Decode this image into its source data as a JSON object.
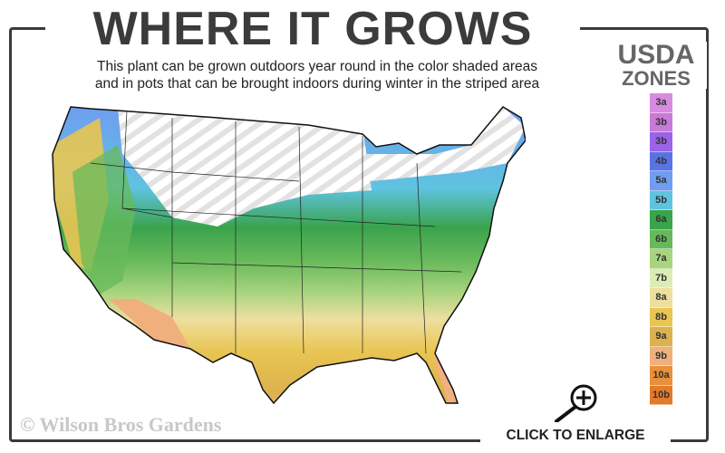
{
  "title": "WHERE IT GROWS",
  "subtitle_line1": "This plant can be grown outdoors year round in the color shaded areas",
  "subtitle_line2": "and in pots that can be brought indoors during winter in the striped area",
  "legend": {
    "title_line1": "USDA",
    "title_line2": "ZONES",
    "zones": [
      {
        "label": "3a",
        "color": "#d88be0"
      },
      {
        "label": "3b",
        "color": "#c77ad8"
      },
      {
        "label": "3b",
        "color": "#9b63e6"
      },
      {
        "label": "4b",
        "color": "#5a73e3"
      },
      {
        "label": "5a",
        "color": "#6f9df0"
      },
      {
        "label": "5b",
        "color": "#5fc3e0"
      },
      {
        "label": "6a",
        "color": "#3aa34c"
      },
      {
        "label": "6b",
        "color": "#67b95a"
      },
      {
        "label": "7a",
        "color": "#a8d47e"
      },
      {
        "label": "7b",
        "color": "#dcecb5"
      },
      {
        "label": "8a",
        "color": "#eedfa0"
      },
      {
        "label": "8b",
        "color": "#e9c552"
      },
      {
        "label": "9a",
        "color": "#dcb24f"
      },
      {
        "label": "9b",
        "color": "#f0b07e"
      },
      {
        "label": "10a",
        "color": "#e8913a"
      },
      {
        "label": "10b",
        "color": "#e37a2c"
      }
    ]
  },
  "copyright": "© Wilson Bros Gardens",
  "enlarge_label": "CLICK TO ENLARGE",
  "icons": {
    "enlarge": "magnifier-plus-icon"
  }
}
